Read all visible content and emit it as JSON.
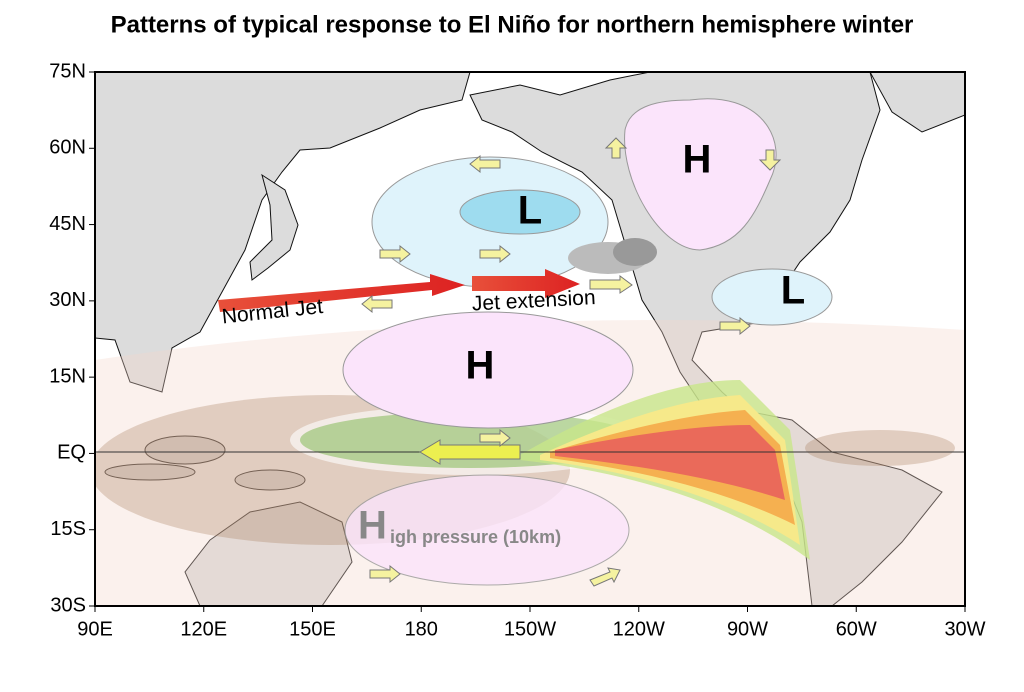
{
  "title": "Patterns of typical response to El Niño for northern hemisphere winter",
  "axes": {
    "lat_labels": [
      "75N",
      "60N",
      "45N",
      "30N",
      "15N",
      "EQ",
      "15S",
      "30S"
    ],
    "lon_labels": [
      "90E",
      "120E",
      "150E",
      "180",
      "150W",
      "120W",
      "90W",
      "60W",
      "30W"
    ]
  },
  "map_labels": {
    "high_north_america": "H",
    "low_north_pacific": "L",
    "low_southeast_us": "L",
    "high_subtropical_north": "H",
    "normal_jet": "Normal Jet",
    "jet_extension": "Jet extension",
    "high_south_initial": "H",
    "high_south_rest": "igh pressure (10km)"
  }
}
